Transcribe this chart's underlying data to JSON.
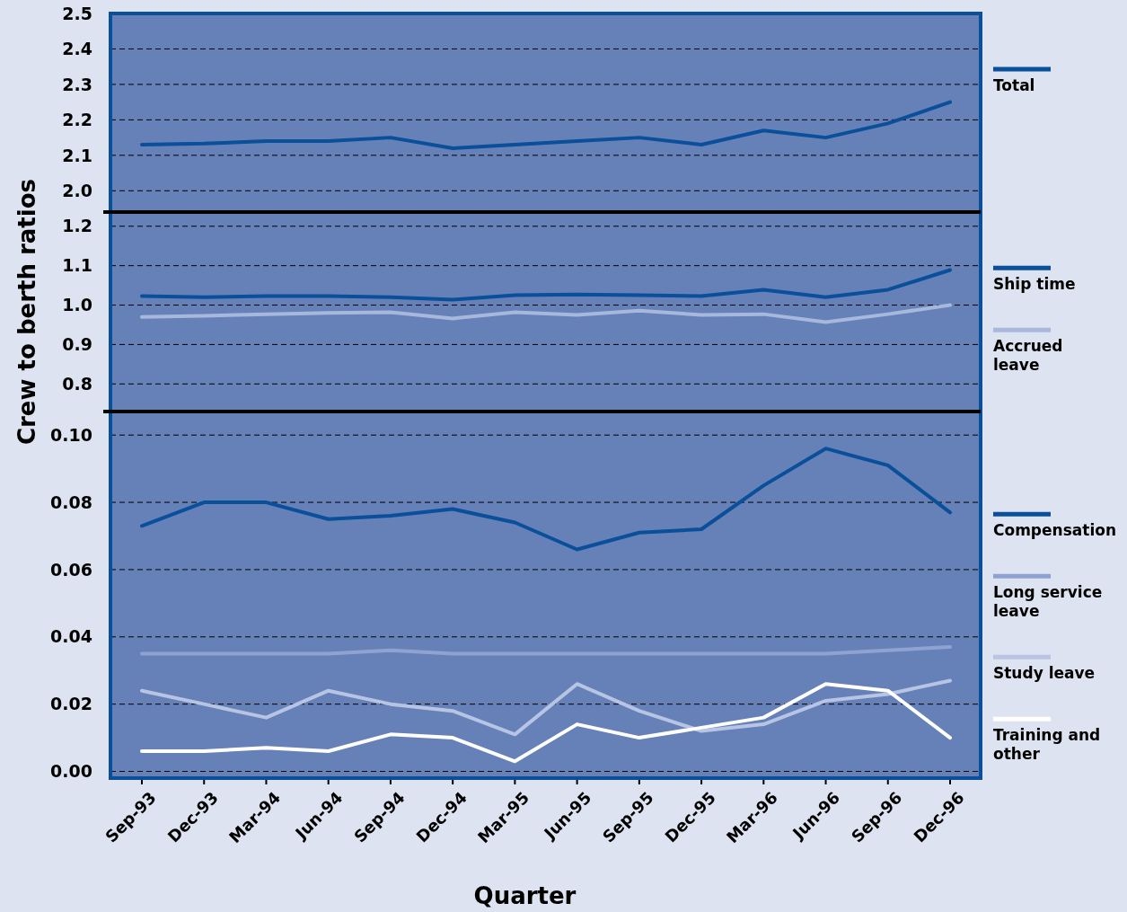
{
  "chart_data": [
    {
      "type": "line",
      "categories": [
        null,
        null,
        null,
        null,
        null,
        null,
        null,
        null,
        null,
        null,
        null,
        null,
        null,
        null
      ],
      "series": [
        {
          "name": "Total",
          "color": "#0a4f9a",
          "values": [
            2.13,
            2.133,
            2.14,
            2.14,
            2.15,
            2.12,
            2.13,
            2.14,
            2.15,
            2.13,
            2.17,
            2.15,
            2.19,
            2.25
          ]
        }
      ],
      "ylim": [
        1.94,
        2.5
      ],
      "yticks": [
        {
          "value": 2.0,
          "label": "2.0"
        },
        2.1,
        2.2,
        2.3,
        2.4,
        2.5
      ],
      "grid": "y",
      "legend": "right",
      "tick_labels": "y"
    },
    {
      "type": "line",
      "ylabel": "Crew to berth ratios",
      "categories": [
        null,
        null,
        null,
        null,
        null,
        null,
        null,
        null,
        null,
        null,
        null,
        null,
        null,
        null
      ],
      "series": [
        {
          "name": "Ship time",
          "color": "#0a4f9a",
          "values": [
            1.023,
            1.02,
            1.023,
            1.023,
            1.02,
            1.014,
            1.025,
            1.027,
            1.025,
            1.023,
            1.039,
            1.02,
            1.039,
            1.089
          ]
        },
        {
          "name": "Accrued leave",
          "color": "#a8b8dc",
          "values": [
            0.97,
            0.973,
            0.977,
            0.98,
            0.982,
            0.966,
            0.982,
            0.975,
            0.986,
            0.975,
            0.977,
            0.957,
            0.977,
            1.0
          ]
        }
      ],
      "ylim": [
        0.73,
        1.236
      ],
      "yticks": [
        0.8,
        0.9,
        {
          "value": 1.0,
          "label": "1.0"
        },
        1.1,
        1.2
      ],
      "grid": "y",
      "legend": "right",
      "tick_labels": "y"
    },
    {
      "type": "line",
      "xlabel": "Quarter",
      "categories": [
        "Sep-93",
        "Dec-93",
        "Mar-94",
        "Jun-94",
        "Sep-94",
        "Dec-94",
        "Mar-95",
        "Jun-95",
        "Sep-95",
        "Dec-95",
        "Mar-96",
        "Jun-96",
        "Sep-96",
        "Dec-96"
      ],
      "series": [
        {
          "name": "Compensation",
          "color": "#0a4f9a",
          "values": [
            0.073,
            0.08,
            0.08,
            0.075,
            0.076,
            0.078,
            0.074,
            0.066,
            0.071,
            0.072,
            0.085,
            0.096,
            0.091,
            0.077
          ]
        },
        {
          "name": "Long service leave",
          "color": "#8fa3d3",
          "values": [
            0.035,
            0.035,
            0.035,
            0.035,
            0.036,
            0.035,
            0.035,
            0.035,
            0.035,
            0.035,
            0.035,
            0.035,
            0.036,
            0.037
          ]
        },
        {
          "name": "Study leave",
          "color": "#b8c4e4",
          "values": [
            0.024,
            0.02,
            0.016,
            0.024,
            0.02,
            0.018,
            0.011,
            0.026,
            0.018,
            0.012,
            0.014,
            0.021,
            0.023,
            0.027
          ]
        },
        {
          "name": "Training and other",
          "color": "#ffffff",
          "values": [
            0.006,
            0.006,
            0.007,
            0.006,
            0.011,
            0.01,
            0.003,
            0.014,
            0.01,
            0.013,
            0.016,
            0.026,
            0.024,
            0.01
          ]
        }
      ],
      "ylim": [
        -0.002,
        0.107
      ],
      "yticks": [
        {
          "value": 0,
          "label": "0.00"
        },
        {
          "value": 0.02,
          "label": "0.02"
        },
        {
          "value": 0.04,
          "label": "0.04"
        },
        {
          "value": 0.06,
          "label": "0.06"
        },
        {
          "value": 0.08,
          "label": "0.08"
        },
        {
          "value": 0.1,
          "label": "0.10"
        }
      ],
      "grid": "y",
      "legend": "right"
    }
  ]
}
